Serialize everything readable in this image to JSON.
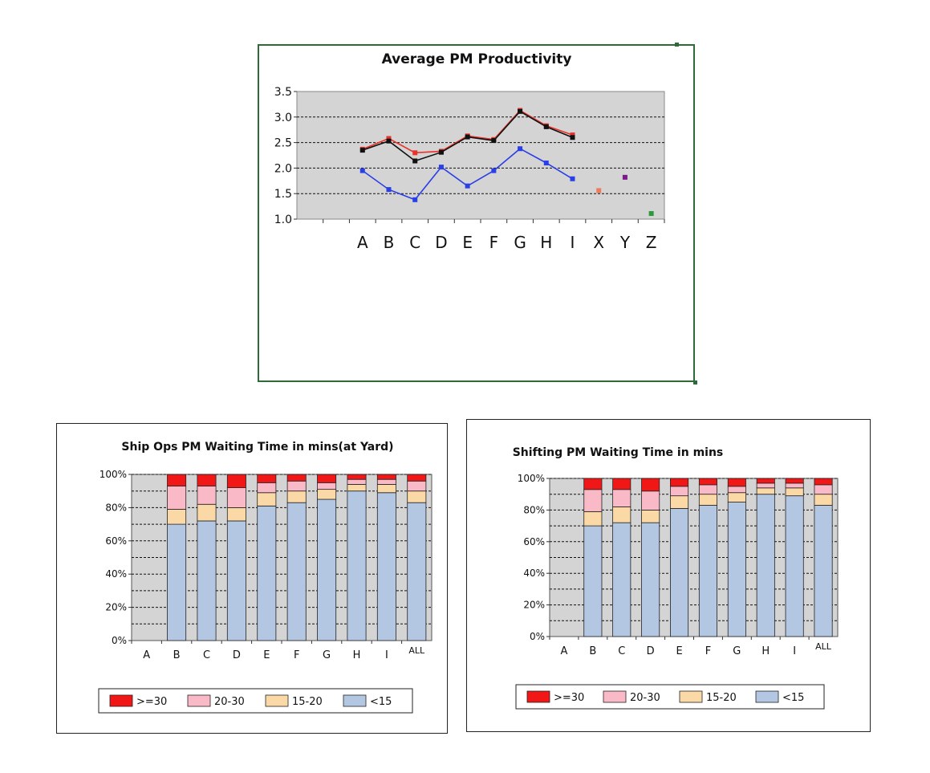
{
  "chart_data": [
    {
      "type": "line",
      "title": "Average PM Productivity",
      "categories": [
        "A",
        "B",
        "C",
        "D",
        "E",
        "F",
        "G",
        "H",
        "I",
        "X",
        "Y",
        "Z"
      ],
      "ylim": [
        1.0,
        3.5
      ],
      "yticks": [
        "1.0",
        "1.5",
        "2.0",
        "2.5",
        "3.0",
        "3.5"
      ],
      "grid": true,
      "colors": {
        "plot_bg": "#d4d4d4"
      },
      "series": [
        {
          "color": "#e8332a",
          "values": [
            2.37,
            2.58,
            2.3,
            2.33,
            2.63,
            2.56,
            3.13,
            2.83,
            2.65,
            null,
            null,
            null
          ]
        },
        {
          "color": "#111111",
          "values": [
            2.35,
            2.53,
            2.14,
            2.31,
            2.61,
            2.54,
            3.11,
            2.81,
            2.6,
            null,
            null,
            null
          ]
        },
        {
          "color": "#2a3fe6",
          "values": [
            1.95,
            1.58,
            1.38,
            2.02,
            1.65,
            1.95,
            2.38,
            2.1,
            1.79,
            null,
            null,
            null
          ]
        },
        {
          "color": "#f07a5a",
          "values": [
            null,
            null,
            null,
            null,
            null,
            null,
            null,
            null,
            null,
            1.56,
            null,
            null
          ]
        },
        {
          "color": "#7a1a8a",
          "values": [
            null,
            null,
            null,
            null,
            null,
            null,
            null,
            null,
            null,
            null,
            1.82,
            null
          ]
        },
        {
          "color": "#2a9a3a",
          "values": [
            null,
            null,
            null,
            null,
            null,
            null,
            null,
            null,
            null,
            null,
            null,
            1.11
          ]
        }
      ]
    },
    {
      "type": "bar",
      "stacked": true,
      "title": "Ship Ops PM Waiting Time in mins(at Yard)",
      "categories": [
        "A",
        "B",
        "C",
        "D",
        "E",
        "F",
        "G",
        "H",
        "I",
        "ALL"
      ],
      "ylim": [
        0,
        100
      ],
      "yticks": [
        "0%",
        "20%",
        "40%",
        "60%",
        "80%",
        "100%"
      ],
      "grid": true,
      "legend": "bottom",
      "series": [
        {
          "name": "<15",
          "color": "#b3c6e2",
          "values": [
            0,
            70,
            72,
            72,
            81,
            83,
            85,
            90,
            89,
            83
          ]
        },
        {
          "name": "15-20",
          "color": "#fbd9a6",
          "values": [
            0,
            9,
            10,
            8,
            8,
            7,
            6,
            4,
            5,
            7
          ]
        },
        {
          "name": "20-30",
          "color": "#f9b9c6",
          "values": [
            0,
            14,
            11,
            12,
            6,
            6,
            4,
            3,
            3,
            6
          ]
        },
        {
          "name": ">=30",
          "color": "#f21717",
          "values": [
            0,
            7,
            7,
            8,
            5,
            4,
            5,
            3,
            3,
            4
          ]
        }
      ]
    },
    {
      "type": "bar",
      "stacked": true,
      "title": "Shifting  PM Waiting Time in mins",
      "categories": [
        "A",
        "B",
        "C",
        "D",
        "E",
        "F",
        "G",
        "H",
        "I",
        "ALL"
      ],
      "ylim": [
        0,
        100
      ],
      "yticks": [
        "0%",
        "20%",
        "40%",
        "60%",
        "80%",
        "100%"
      ],
      "grid": true,
      "legend": "bottom",
      "series": [
        {
          "name": "<15",
          "color": "#b3c6e2",
          "values": [
            0,
            70,
            72,
            72,
            81,
            83,
            85,
            90,
            89,
            83
          ]
        },
        {
          "name": "15-20",
          "color": "#fbd9a6",
          "values": [
            0,
            9,
            10,
            8,
            8,
            7,
            6,
            4,
            5,
            7
          ]
        },
        {
          "name": "20-30",
          "color": "#f9b9c6",
          "values": [
            0,
            14,
            11,
            12,
            6,
            6,
            4,
            3,
            3,
            6
          ]
        },
        {
          "name": ">=30",
          "color": "#f21717",
          "values": [
            0,
            7,
            7,
            8,
            5,
            4,
            5,
            3,
            3,
            4
          ]
        }
      ]
    }
  ]
}
